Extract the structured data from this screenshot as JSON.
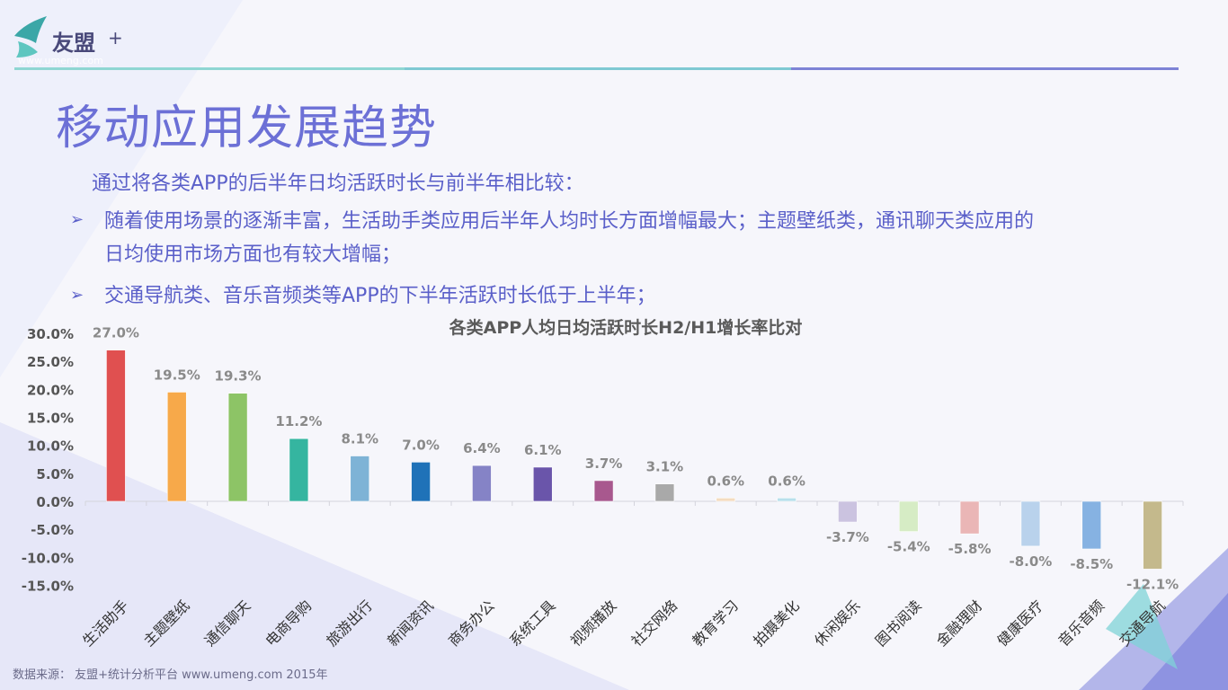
{
  "logo": {
    "name": "友盟",
    "plus": "+",
    "url": "www.umeng.com"
  },
  "page_title": "移动应用发展趋势",
  "intro": "通过将各类APP的后半年日均活跃时长与前半年相比较：",
  "bullets": [
    {
      "mark": "➢",
      "lines": [
        "随着使用场景的逐渐丰富，生活助手类应用后半年人均时长方面增幅最大；主题壁纸类，通讯聊天类应用的",
        "日均使用市场方面也有较大增幅；"
      ]
    },
    {
      "mark": "➢",
      "lines": [
        "交通导航类、音乐音频类等APP的下半年活跃时长低于上半年；"
      ]
    }
  ],
  "chart_data": {
    "type": "bar",
    "title": "各类APP人均日均活跃时长H2/H1增长率比对",
    "categories": [
      "生活助手",
      "主题壁纸",
      "通信聊天",
      "电商导购",
      "旅游出行",
      "新闻资讯",
      "商务办公",
      "系统工具",
      "视频播放",
      "社交网络",
      "教育学习",
      "拍摄美化",
      "休闲娱乐",
      "图书阅读",
      "金融理财",
      "健康医疗",
      "音乐音频",
      "交通导航"
    ],
    "values": [
      27.0,
      19.5,
      19.3,
      11.2,
      8.1,
      7.0,
      6.4,
      6.1,
      3.7,
      3.1,
      0.6,
      0.6,
      -3.7,
      -5.4,
      -5.8,
      -8.0,
      -8.5,
      -12.1
    ],
    "labels": [
      "27.0%",
      "19.5%",
      "19.3%",
      "11.2%",
      "8.1%",
      "7.0%",
      "6.4%",
      "6.1%",
      "3.7%",
      "3.1%",
      "0.6%",
      "0.6%",
      "-3.7%",
      "-5.4%",
      "-5.8%",
      "-8.0%",
      "-8.5%",
      "-12.1%"
    ],
    "colors": [
      "#e05050",
      "#f7a94a",
      "#8dc466",
      "#35b5a0",
      "#7eb3d6",
      "#1f72b8",
      "#8583c6",
      "#6a55aa",
      "#a8588e",
      "#a9a9a9",
      "#f4dcc0",
      "#b8e0ec",
      "#cbc3e0",
      "#d6ecc5",
      "#eab6b6",
      "#b9d2ec",
      "#86b2e2",
      "#c4b98c"
    ],
    "yticks": [
      "30.0%",
      "25.0%",
      "20.0%",
      "15.0%",
      "10.0%",
      "5.0%",
      "0.0%",
      "-5.0%",
      "-10.0%",
      "-15.0%"
    ],
    "ylim": [
      -15,
      30
    ]
  },
  "source": "数据来源： 友盟+统计分析平台 www.umeng.com 2015年"
}
